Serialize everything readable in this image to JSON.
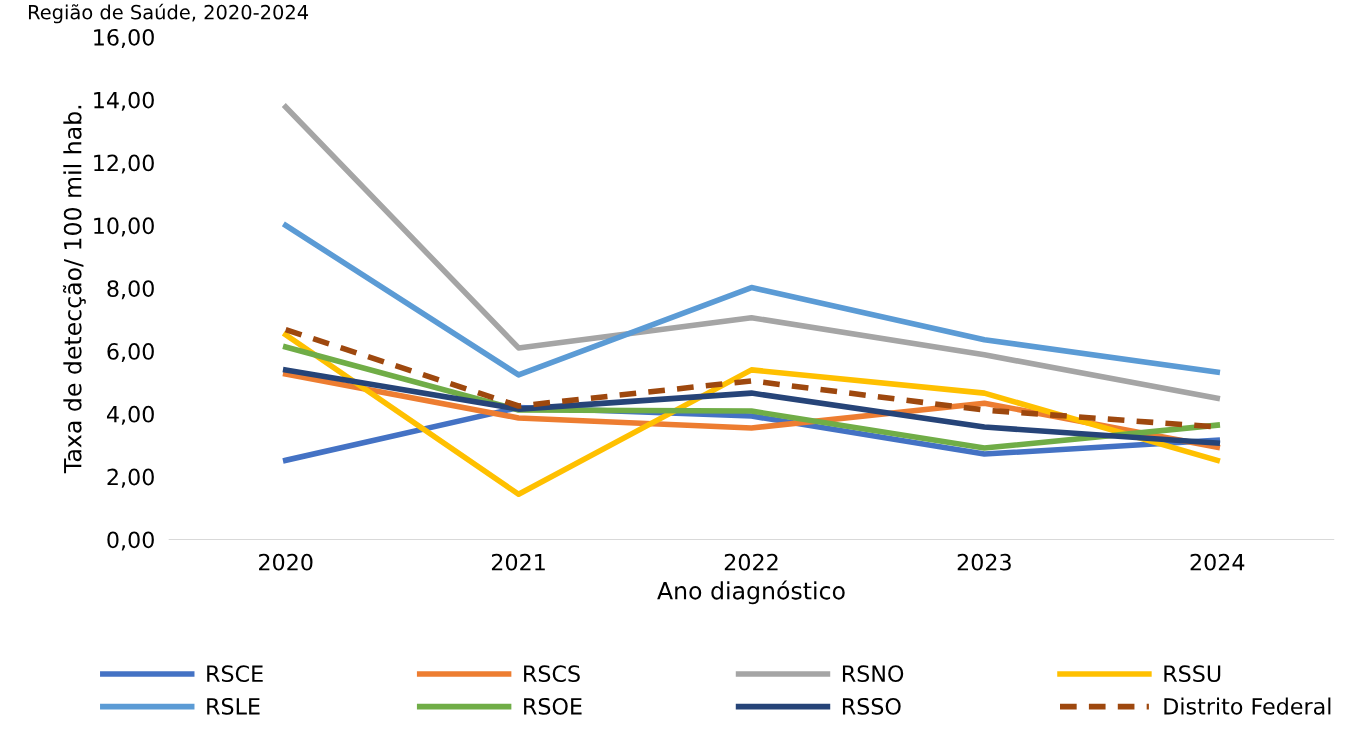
{
  "chart_data": {
    "type": "line",
    "title": "Região de Saúde, 2020-2024",
    "xlabel": "Ano diagnóstico",
    "ylabel": "Taxa de detecção/ 100 mil hab.",
    "categories": [
      "2020",
      "2021",
      "2022",
      "2023",
      "2024"
    ],
    "ylim": [
      0,
      16
    ],
    "yticks": [
      {
        "value": 0,
        "label": "0,00"
      },
      {
        "value": 2,
        "label": "2,00"
      },
      {
        "value": 4,
        "label": "4,00"
      },
      {
        "value": 6,
        "label": "6,00"
      },
      {
        "value": 8,
        "label": "8,00"
      },
      {
        "value": 10,
        "label": "10,00"
      },
      {
        "value": 12,
        "label": "12,00"
      },
      {
        "value": 14,
        "label": "14,00"
      },
      {
        "value": 16,
        "label": "16,00"
      }
    ],
    "grid": false,
    "legend": "bottom",
    "marker": "none",
    "series": [
      {
        "name": "RSCE",
        "color": "#4472c4",
        "values": [
          2.52,
          4.2,
          3.93,
          2.72,
          3.16
        ]
      },
      {
        "name": "RSCS",
        "color": "#ed7d31",
        "values": [
          5.27,
          3.87,
          3.55,
          4.34,
          2.94
        ]
      },
      {
        "name": "RSNO",
        "color": "#a5a5a5",
        "values": [
          13.77,
          6.1,
          7.06,
          5.88,
          4.5
        ]
      },
      {
        "name": "RSSU",
        "color": "#ffc000",
        "values": [
          6.52,
          1.44,
          5.4,
          4.66,
          2.52
        ]
      },
      {
        "name": "RSLE",
        "color": "#5b9bd5",
        "values": [
          10.0,
          5.24,
          8.02,
          6.36,
          5.33
        ]
      },
      {
        "name": "RSOE",
        "color": "#70ad47",
        "values": [
          6.13,
          4.12,
          4.09,
          2.91,
          3.64
        ]
      },
      {
        "name": "RSSO",
        "color": "#264478",
        "values": [
          5.4,
          4.15,
          4.66,
          3.58,
          3.07
        ]
      },
      {
        "name": "Distrito Federal",
        "color": "#9e480e",
        "values": [
          6.68,
          4.25,
          5.05,
          4.12,
          3.58
        ],
        "line_style": "dashed"
      }
    ]
  }
}
